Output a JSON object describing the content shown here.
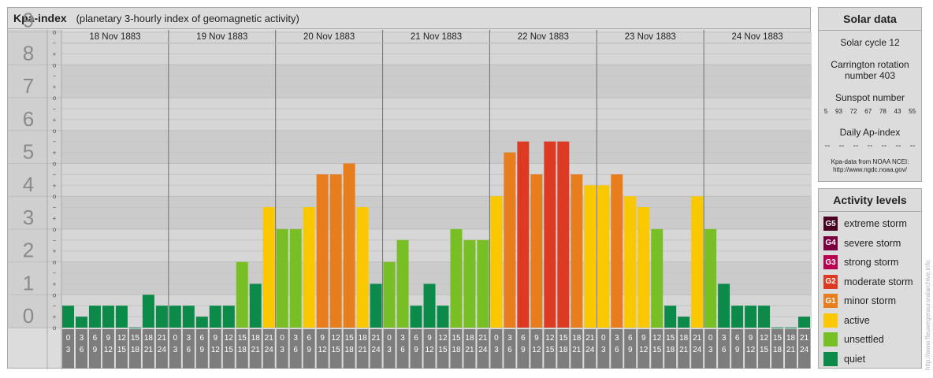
{
  "title": "Kpa-index",
  "subtitle": "(planetary 3-hourly index of geomagnetic activity)",
  "chart_data": {
    "type": "bar",
    "title": "Kpa-index",
    "subtitle": "(planetary 3-hourly index of geomagnetic activity)",
    "ylim": [
      0,
      9
    ],
    "y_ticks": [
      "0",
      "1",
      "2",
      "3",
      "4",
      "5",
      "6",
      "7",
      "8",
      "9"
    ],
    "y_minor_ticks": [
      "o",
      "+",
      "−",
      "o",
      "+",
      "−",
      "o",
      "+",
      "−",
      "o",
      "+",
      "−",
      "o",
      "+",
      "−",
      "o",
      "+",
      "−",
      "o",
      "+",
      "−",
      "o",
      "+",
      "−",
      "o",
      "+",
      "−",
      "o"
    ],
    "days": [
      "18 Nov 1883",
      "19 Nov 1883",
      "20 Nov 1883",
      "21 Nov 1883",
      "22 Nov 1883",
      "23 Nov 1883",
      "24 Nov 1883"
    ],
    "interval_starts": [
      "0",
      "3",
      "6",
      "9",
      "12",
      "15",
      "18",
      "21"
    ],
    "interval_ends": [
      "3",
      "6",
      "9",
      "12",
      "15",
      "18",
      "21",
      "24"
    ],
    "values": [
      [
        0.667,
        0.333,
        0.667,
        0.667,
        0.667,
        0,
        1,
        0.667
      ],
      [
        0.667,
        0.667,
        0.333,
        0.667,
        0.667,
        2,
        1.333,
        3.667
      ],
      [
        3,
        3,
        3.667,
        4.667,
        4.667,
        5,
        3.667,
        1.333
      ],
      [
        2,
        2.667,
        0.667,
        1.333,
        0.667,
        3,
        2.667,
        2.667
      ],
      [
        4,
        5.333,
        5.667,
        4.667,
        5.667,
        5.667,
        4.667,
        4.333
      ],
      [
        4.333,
        4.667,
        4,
        3.667,
        3,
        0.667,
        0.333,
        4
      ],
      [
        3,
        1.333,
        0.667,
        0.667,
        0.667,
        0,
        0,
        0.333
      ]
    ],
    "level_colors": {
      "quiet": "#0b8a4a",
      "unsettled": "#78bf26",
      "active": "#fac800",
      "minor": "#e87d1e",
      "moderate": "#dc3a22",
      "strong": "#b9004f",
      "severe": "#7a0040",
      "extreme": "#4a0020"
    },
    "grid": true
  },
  "solar": {
    "title": "Solar data",
    "cycle": "Solar cycle 12",
    "carrington_1": "Carrington rotation",
    "carrington_2": "number 403",
    "sunspot_title": "Sunspot number",
    "sunspots": [
      "5",
      "93",
      "72",
      "67",
      "78",
      "43",
      "55"
    ],
    "ap_title": "Daily Ap-index",
    "ap_values": [
      "--",
      "--",
      "--",
      "--",
      "--",
      "--",
      "--"
    ],
    "source_1": "Kpa-data from NOAA NCEI:",
    "source_2": "http://www.ngdc.noaa.gov/"
  },
  "activity": {
    "title": "Activity levels",
    "items": [
      {
        "code": "G5",
        "label": "extreme storm",
        "color": "#4a0020"
      },
      {
        "code": "G4",
        "label": "severe storm",
        "color": "#7a0040"
      },
      {
        "code": "G3",
        "label": "strong storm",
        "color": "#b9004f"
      },
      {
        "code": "G2",
        "label": "moderate storm",
        "color": "#dc3a22"
      },
      {
        "code": "G1",
        "label": "minor storm",
        "color": "#e87d1e"
      },
      {
        "code": "",
        "label": "active",
        "color": "#fac800"
      },
      {
        "code": "",
        "label": "unsettled",
        "color": "#78bf26"
      },
      {
        "code": "",
        "label": "quiet",
        "color": "#0b8a4a"
      }
    ]
  },
  "watermark": "http://www.fleuwegerauroralarchive.info"
}
